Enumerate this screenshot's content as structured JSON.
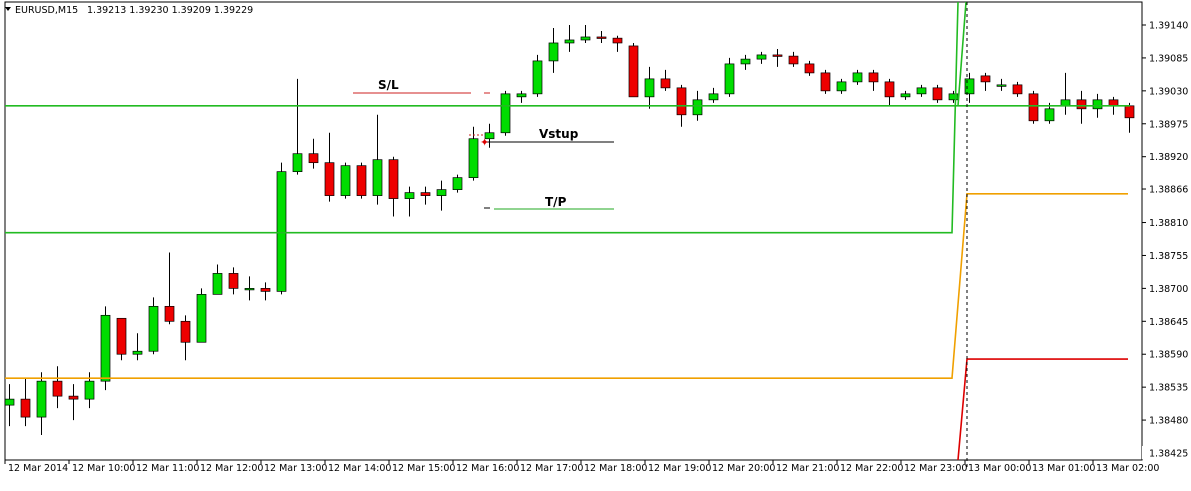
{
  "header": {
    "symbol": "EURUSD,M15",
    "ohlc": "1.39213 1.39230 1.39209 1.39229"
  },
  "colors": {
    "background": "#ffffff",
    "axis": "#000000",
    "bull": "#00dd00",
    "bear": "#ee0000",
    "wick": "#000000",
    "green_line": "#22bb22",
    "orange_line": "#f0a000",
    "red_line": "#dd0000",
    "sl_line": "#cc2222",
    "tp_line": "#22aa22"
  },
  "chart_data": {
    "type": "candlestick",
    "ylim": [
      1.384,
      1.3916
    ],
    "y_ticks": [
      "1.39140",
      "1.39085",
      "1.39030",
      "1.38975",
      "1.38920",
      "1.38866",
      "1.38810",
      "1.38755",
      "1.38700",
      "1.38645",
      "1.38590",
      "1.38535",
      "1.38480",
      "1.38425"
    ],
    "x_ticks": [
      "12 Mar 2014",
      "12 Mar 10:00",
      "12 Mar 11:00",
      "12 Mar 12:00",
      "12 Mar 13:00",
      "12 Mar 14:00",
      "12 Mar 15:00",
      "12 Mar 16:00",
      "12 Mar 17:00",
      "12 Mar 18:00",
      "12 Mar 19:00",
      "12 Mar 20:00",
      "12 Mar 21:00",
      "12 Mar 22:00",
      "12 Mar 23:00",
      "13 Mar 00:00",
      "13 Mar 01:00",
      "13 Mar 02:00"
    ],
    "candles": [
      {
        "o": 1.38505,
        "h": 1.3854,
        "l": 1.3847,
        "c": 1.38515
      },
      {
        "o": 1.38515,
        "h": 1.3855,
        "l": 1.3847,
        "c": 1.38485
      },
      {
        "o": 1.38485,
        "h": 1.3856,
        "l": 1.38455,
        "c": 1.38545
      },
      {
        "o": 1.38545,
        "h": 1.3857,
        "l": 1.385,
        "c": 1.3852
      },
      {
        "o": 1.3852,
        "h": 1.3854,
        "l": 1.3848,
        "c": 1.38515
      },
      {
        "o": 1.38515,
        "h": 1.3856,
        "l": 1.385,
        "c": 1.38545
      },
      {
        "o": 1.38545,
        "h": 1.3867,
        "l": 1.3853,
        "c": 1.38655
      },
      {
        "o": 1.3865,
        "h": 1.3865,
        "l": 1.3858,
        "c": 1.3859
      },
      {
        "o": 1.3859,
        "h": 1.38625,
        "l": 1.3858,
        "c": 1.38595
      },
      {
        "o": 1.38595,
        "h": 1.38685,
        "l": 1.3859,
        "c": 1.3867
      },
      {
        "o": 1.3867,
        "h": 1.3876,
        "l": 1.3864,
        "c": 1.38645
      },
      {
        "o": 1.38645,
        "h": 1.38655,
        "l": 1.3858,
        "c": 1.3861
      },
      {
        "o": 1.3861,
        "h": 1.387,
        "l": 1.3861,
        "c": 1.3869
      },
      {
        "o": 1.3869,
        "h": 1.3874,
        "l": 1.3869,
        "c": 1.38725
      },
      {
        "o": 1.38725,
        "h": 1.38735,
        "l": 1.3869,
        "c": 1.387
      },
      {
        "o": 1.387,
        "h": 1.3872,
        "l": 1.3868,
        "c": 1.387
      },
      {
        "o": 1.387,
        "h": 1.3871,
        "l": 1.3868,
        "c": 1.38695
      },
      {
        "o": 1.38695,
        "h": 1.3891,
        "l": 1.3869,
        "c": 1.38895
      },
      {
        "o": 1.38895,
        "h": 1.3905,
        "l": 1.3889,
        "c": 1.38925
      },
      {
        "o": 1.38925,
        "h": 1.3895,
        "l": 1.389,
        "c": 1.3891
      },
      {
        "o": 1.3891,
        "h": 1.3896,
        "l": 1.38845,
        "c": 1.38855
      },
      {
        "o": 1.38855,
        "h": 1.3891,
        "l": 1.3885,
        "c": 1.38905
      },
      {
        "o": 1.38905,
        "h": 1.3891,
        "l": 1.3885,
        "c": 1.38855
      },
      {
        "o": 1.38855,
        "h": 1.3899,
        "l": 1.3884,
        "c": 1.38915
      },
      {
        "o": 1.38915,
        "h": 1.3892,
        "l": 1.3882,
        "c": 1.3885
      },
      {
        "o": 1.3885,
        "h": 1.3887,
        "l": 1.3882,
        "c": 1.3886
      },
      {
        "o": 1.3886,
        "h": 1.3887,
        "l": 1.3884,
        "c": 1.38855
      },
      {
        "o": 1.38855,
        "h": 1.3888,
        "l": 1.3883,
        "c": 1.38865
      },
      {
        "o": 1.38865,
        "h": 1.3889,
        "l": 1.3886,
        "c": 1.38885
      },
      {
        "o": 1.38885,
        "h": 1.3897,
        "l": 1.3888,
        "c": 1.3895
      },
      {
        "o": 1.3895,
        "h": 1.38975,
        "l": 1.38935,
        "c": 1.3896
      },
      {
        "o": 1.3896,
        "h": 1.3903,
        "l": 1.38955,
        "c": 1.39025
      },
      {
        "o": 1.3902,
        "h": 1.3903,
        "l": 1.3901,
        "c": 1.39025
      },
      {
        "o": 1.39025,
        "h": 1.3909,
        "l": 1.3902,
        "c": 1.3908
      },
      {
        "o": 1.3908,
        "h": 1.39135,
        "l": 1.3906,
        "c": 1.3911
      },
      {
        "o": 1.3911,
        "h": 1.3914,
        "l": 1.39095,
        "c": 1.39115
      },
      {
        "o": 1.39115,
        "h": 1.3914,
        "l": 1.3911,
        "c": 1.3912
      },
      {
        "o": 1.3912,
        "h": 1.3913,
        "l": 1.3911,
        "c": 1.39118
      },
      {
        "o": 1.39118,
        "h": 1.39122,
        "l": 1.39095,
        "c": 1.3911
      },
      {
        "o": 1.39105,
        "h": 1.3911,
        "l": 1.3902,
        "c": 1.3902
      },
      {
        "o": 1.3902,
        "h": 1.3907,
        "l": 1.39,
        "c": 1.3905
      },
      {
        "o": 1.3905,
        "h": 1.39065,
        "l": 1.3903,
        "c": 1.39035
      },
      {
        "o": 1.39035,
        "h": 1.3904,
        "l": 1.3897,
        "c": 1.3899
      },
      {
        "o": 1.3899,
        "h": 1.3903,
        "l": 1.3898,
        "c": 1.39015
      },
      {
        "o": 1.39015,
        "h": 1.39035,
        "l": 1.3901,
        "c": 1.39025
      },
      {
        "o": 1.39025,
        "h": 1.39085,
        "l": 1.3902,
        "c": 1.39075
      },
      {
        "o": 1.39075,
        "h": 1.3909,
        "l": 1.39065,
        "c": 1.39083
      },
      {
        "o": 1.39083,
        "h": 1.39095,
        "l": 1.39075,
        "c": 1.3909
      },
      {
        "o": 1.3909,
        "h": 1.391,
        "l": 1.3907,
        "c": 1.39088
      },
      {
        "o": 1.39088,
        "h": 1.39095,
        "l": 1.3907,
        "c": 1.39075
      },
      {
        "o": 1.39075,
        "h": 1.3908,
        "l": 1.39055,
        "c": 1.3906
      },
      {
        "o": 1.3906,
        "h": 1.39065,
        "l": 1.39025,
        "c": 1.3903
      },
      {
        "o": 1.3903,
        "h": 1.3905,
        "l": 1.39025,
        "c": 1.39045
      },
      {
        "o": 1.39045,
        "h": 1.39065,
        "l": 1.3904,
        "c": 1.3906
      },
      {
        "o": 1.3906,
        "h": 1.39065,
        "l": 1.3903,
        "c": 1.39045
      },
      {
        "o": 1.39045,
        "h": 1.3905,
        "l": 1.39005,
        "c": 1.3902
      },
      {
        "o": 1.3902,
        "h": 1.3903,
        "l": 1.39015,
        "c": 1.39025
      },
      {
        "o": 1.39025,
        "h": 1.3904,
        "l": 1.3902,
        "c": 1.39035
      },
      {
        "o": 1.39035,
        "h": 1.3904,
        "l": 1.3901,
        "c": 1.39015
      },
      {
        "o": 1.39015,
        "h": 1.3903,
        "l": 1.3901,
        "c": 1.39025
      },
      {
        "o": 1.39025,
        "h": 1.3906,
        "l": 1.3901,
        "c": 1.3905
      },
      {
        "o": 1.39055,
        "h": 1.3906,
        "l": 1.3903,
        "c": 1.39045
      },
      {
        "o": 1.3904,
        "h": 1.3905,
        "l": 1.3903,
        "c": 1.3904
      },
      {
        "o": 1.3904,
        "h": 1.39045,
        "l": 1.3902,
        "c": 1.39025
      },
      {
        "o": 1.39025,
        "h": 1.3903,
        "l": 1.38975,
        "c": 1.3898
      },
      {
        "o": 1.3898,
        "h": 1.3901,
        "l": 1.38975,
        "c": 1.39
      },
      {
        "o": 1.39005,
        "h": 1.3906,
        "l": 1.3899,
        "c": 1.39015
      },
      {
        "o": 1.39015,
        "h": 1.3903,
        "l": 1.38975,
        "c": 1.39
      },
      {
        "o": 1.39,
        "h": 1.39025,
        "l": 1.38985,
        "c": 1.39015
      },
      {
        "o": 1.39015,
        "h": 1.3902,
        "l": 1.3899,
        "c": 1.39005
      },
      {
        "o": 1.39005,
        "h": 1.3901,
        "l": 1.3896,
        "c": 1.38985
      }
    ],
    "levels": {
      "green_upper": 1.39005,
      "green_lower": 1.38793,
      "orange_lower": 1.3855,
      "orange_upper": 1.38858,
      "red_upper": 1.38582
    },
    "annotations": {
      "sl_label": "S/L",
      "entry_label": "Vstup",
      "tp_label": "T/P"
    }
  }
}
